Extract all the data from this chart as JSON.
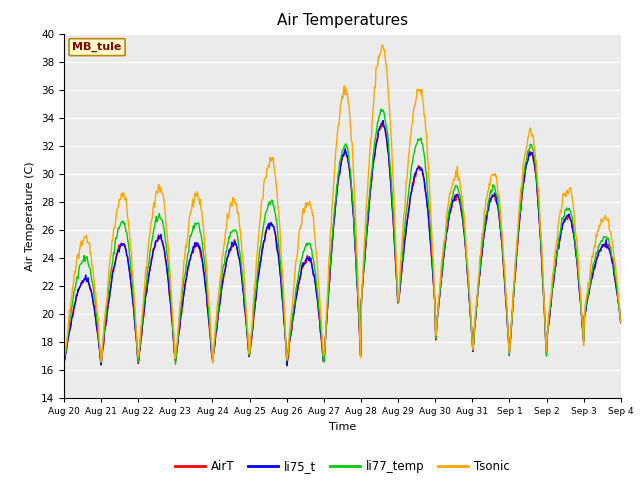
{
  "title": "Air Temperatures",
  "xlabel": "Time",
  "ylabel": "Air Temperature (C)",
  "ylim": [
    14,
    40
  ],
  "yticks": [
    14,
    16,
    18,
    20,
    22,
    24,
    26,
    28,
    30,
    32,
    34,
    36,
    38,
    40
  ],
  "xtick_labels": [
    "Aug 20",
    "Aug 21",
    "Aug 22",
    "Aug 23",
    "Aug 24",
    "Aug 25",
    "Aug 26",
    "Aug 27",
    "Aug 28",
    "Aug 29",
    "Aug 30",
    "Aug 31",
    "Sep 1",
    "Sep 2",
    "Sep 3",
    "Sep 4"
  ],
  "series_colors": {
    "AirT": "#ff0000",
    "li75_t": "#0000ff",
    "li77_temp": "#00cc00",
    "Tsonic": "#ffa500"
  },
  "annotation_text": "MB_tule",
  "annotation_color": "#8b0000",
  "annotation_bg": "#ffffcc",
  "annotation_border": "#b8860b",
  "background_color": "#ebebeb",
  "n_days": 15,
  "points_per_day": 48,
  "day_peaks": [
    22.5,
    25.0,
    25.5,
    25.0,
    25.0,
    26.5,
    24.0,
    31.5,
    33.5,
    30.5,
    28.5,
    28.5,
    31.5,
    27.0,
    25.0
  ],
  "night_temps": [
    16.5,
    16.5,
    16.5,
    16.5,
    16.5,
    17.0,
    16.3,
    16.5,
    20.5,
    20.5,
    18.0,
    17.0,
    17.0,
    18.0,
    19.5
  ],
  "tsonic_extra": [
    3.0,
    3.5,
    3.5,
    3.5,
    3.0,
    4.5,
    4.0,
    4.5,
    5.5,
    5.5,
    1.5,
    1.5,
    1.5,
    2.0,
    2.0
  ],
  "li77_extra": [
    1.5,
    1.5,
    1.5,
    1.5,
    1.0,
    1.5,
    1.0,
    0.5,
    1.0,
    2.0,
    0.5,
    0.5,
    0.5,
    0.5,
    0.5
  ],
  "peak_time": 14,
  "line_width": 1.0
}
